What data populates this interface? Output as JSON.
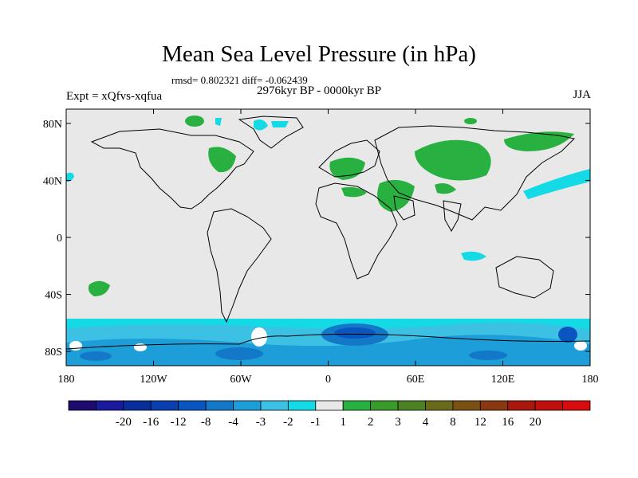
{
  "title": "Mean Sea Level Pressure (in hPa)",
  "stats": "rmsd= 0.802321 diff= -0.062439",
  "period": "2976kyr BP - 0000kyr BP",
  "experiment": "Expt = xQfvs-xqfua",
  "season": "JJA",
  "lat_ticks": [
    "80N",
    "40N",
    "0",
    "40S",
    "80S"
  ],
  "lat_values": [
    80,
    40,
    0,
    -40,
    -80
  ],
  "lon_ticks": [
    "180",
    "120W",
    "60W",
    "0",
    "60E",
    "120E",
    "180"
  ],
  "lon_values": [
    -180,
    -120,
    -60,
    0,
    60,
    120,
    180
  ],
  "colorbar": {
    "colors": [
      "#1f0a6e",
      "#1a1a9c",
      "#0a2e99",
      "#0a3fb0",
      "#0a55c0",
      "#1478c8",
      "#1e9ed8",
      "#3cc0e4",
      "#14dae6",
      "#e8e8e8",
      "#28b040",
      "#3a9a2c",
      "#4c8224",
      "#6a6a1c",
      "#7a5014",
      "#8a3810",
      "#a8180c",
      "#c0100c",
      "#d80c0c"
    ],
    "labels": [
      "-20",
      "-16",
      "-12",
      "-8",
      "-4",
      "-3",
      "-2",
      "-1",
      "1",
      "2",
      "3",
      "4",
      "8",
      "12",
      "16",
      "20"
    ]
  },
  "legend_colors": {
    "positive_1_2": "#28b040",
    "negative_1_2": "#14dae6",
    "negative_2_3": "#3cc0e4",
    "negative_3_4": "#1e9ed8",
    "negative_4_8": "#1478c8",
    "negative_8_12": "#0a55c0",
    "neutral": "#e8e8e8"
  }
}
